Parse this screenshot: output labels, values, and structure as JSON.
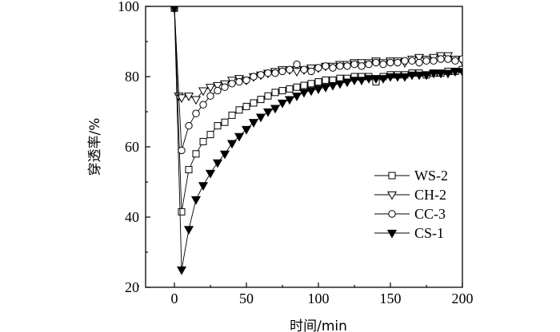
{
  "chart_data": {
    "type": "line",
    "title": "",
    "xlabel": "时间/min",
    "ylabel": "穿透率/%",
    "xlim": [
      -20,
      200
    ],
    "ylim": [
      20,
      100
    ],
    "xticks": [
      0,
      50,
      100,
      150,
      200
    ],
    "yticks": [
      20,
      40,
      60,
      80,
      100
    ],
    "grid": false,
    "legend_position": "right-middle",
    "series": [
      {
        "name": "WS-2",
        "marker": "square-open",
        "x": [
          0,
          5,
          10,
          15,
          20,
          25,
          30,
          35,
          40,
          45,
          50,
          55,
          60,
          65,
          70,
          75,
          80,
          85,
          90,
          95,
          100,
          105,
          110,
          115,
          120,
          125,
          130,
          135,
          140,
          145,
          150,
          155,
          160,
          165,
          170,
          175,
          180,
          185,
          190,
          195,
          200
        ],
        "y": [
          99.5,
          41.5,
          53.5,
          58,
          61.5,
          63.5,
          66,
          67,
          69,
          70.5,
          71.5,
          72.5,
          73.5,
          74.5,
          75.5,
          76,
          76.5,
          77,
          77.5,
          78,
          78.5,
          79,
          79,
          79.5,
          79.5,
          80,
          80,
          80,
          78.5,
          80,
          80.5,
          80.5,
          80.5,
          81,
          81,
          80.5,
          81,
          81,
          81.5,
          81.5,
          82
        ]
      },
      {
        "name": "CH-2",
        "marker": "triangle-down-open",
        "x": [
          0,
          3,
          5,
          10,
          15,
          20,
          25,
          30,
          35,
          40,
          45,
          50,
          55,
          60,
          65,
          70,
          75,
          80,
          85,
          90,
          95,
          100,
          105,
          110,
          115,
          120,
          125,
          130,
          135,
          140,
          145,
          150,
          155,
          160,
          165,
          170,
          175,
          180,
          185,
          190,
          195,
          200
        ],
        "y": [
          99.5,
          74.5,
          74,
          74.5,
          73.5,
          76,
          77,
          77.5,
          78,
          79,
          79.5,
          79,
          80,
          80.5,
          81,
          81.5,
          82,
          82,
          81.5,
          82,
          82.5,
          82.5,
          83,
          83,
          83.5,
          83.5,
          84,
          84,
          84,
          84.5,
          84,
          84.5,
          84.5,
          84,
          85,
          85.5,
          85,
          85.5,
          86,
          86,
          85,
          84.5
        ]
      },
      {
        "name": "CC-3",
        "marker": "circle-open",
        "x": [
          0,
          5,
          10,
          15,
          20,
          25,
          30,
          35,
          40,
          45,
          50,
          55,
          60,
          65,
          70,
          75,
          80,
          85,
          90,
          95,
          100,
          105,
          110,
          115,
          120,
          125,
          130,
          135,
          140,
          145,
          150,
          155,
          160,
          165,
          170,
          175,
          180,
          185,
          190,
          195,
          200
        ],
        "y": [
          99.5,
          59,
          66,
          69.5,
          72,
          74.5,
          76,
          77,
          78,
          78.5,
          79,
          80,
          80.5,
          81,
          81,
          81.5,
          82,
          83.5,
          82,
          81.5,
          82.5,
          83,
          82.5,
          83,
          83,
          83.5,
          83,
          83.5,
          84,
          83.5,
          84,
          84,
          84.5,
          84.5,
          84,
          84.5,
          84.5,
          85,
          85,
          84.5,
          85
        ]
      },
      {
        "name": "CS-1",
        "marker": "triangle-down-filled",
        "x": [
          0,
          5,
          10,
          15,
          20,
          25,
          30,
          35,
          40,
          45,
          50,
          55,
          60,
          65,
          70,
          75,
          80,
          85,
          90,
          95,
          100,
          105,
          110,
          115,
          120,
          125,
          130,
          135,
          140,
          145,
          150,
          155,
          160,
          165,
          170,
          175,
          180,
          185,
          190,
          195,
          200
        ],
        "y": [
          99.5,
          25,
          36.5,
          45,
          49,
          52.5,
          55.5,
          58,
          61,
          63,
          65,
          67,
          68.5,
          70,
          71,
          72.5,
          73.5,
          74.5,
          75.5,
          76,
          76.5,
          77,
          77.5,
          78,
          78.5,
          79,
          79,
          79.5,
          79.5,
          79.5,
          80,
          80,
          80,
          80.5,
          80.5,
          80.5,
          81,
          81,
          81,
          81.5,
          81.5
        ]
      }
    ]
  }
}
